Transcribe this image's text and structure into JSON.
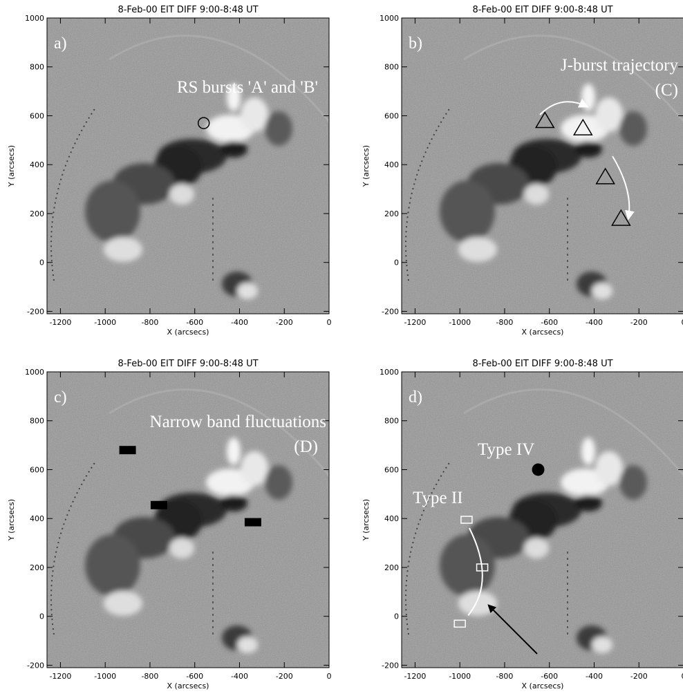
{
  "panel_title": "8-Feb-00 EIT DIFF 9:00-8:48 UT",
  "x_axis": {
    "label": "X (arcsecs)",
    "ticks": [
      "-1200",
      "-1000",
      "-800",
      "-600",
      "-400",
      "-200",
      "0"
    ],
    "range": [
      -1260,
      0
    ]
  },
  "y_axis": {
    "label": "Y (arcsecs)",
    "ticks": [
      "-200",
      "0",
      "200",
      "400",
      "600",
      "800",
      "1000"
    ],
    "range": [
      -210,
      1000
    ]
  },
  "panels": [
    {
      "label": "a)",
      "annotations": [
        "RS bursts 'A' and 'B'"
      ],
      "marker": "circle",
      "points": [
        [
          -560,
          570
        ]
      ]
    },
    {
      "label": "b)",
      "annotations": [
        "J-burst trajectory",
        "(C)"
      ],
      "marker": "triangle",
      "points": [
        [
          -620,
          580
        ],
        [
          -450,
          550
        ],
        [
          -350,
          350
        ],
        [
          -280,
          180
        ]
      ]
    },
    {
      "label": "c)",
      "annotations": [
        "Narrow band fluctuations",
        "(D)"
      ],
      "marker": "bar",
      "points": [
        [
          -900,
          680
        ],
        [
          -760,
          455
        ],
        [
          -340,
          385
        ]
      ]
    },
    {
      "label": "d)",
      "annotations": [
        "Type IV",
        "Type II"
      ],
      "type_iv_point": [
        -650,
        600
      ],
      "type_ii_points": [
        [
          -970,
          395
        ],
        [
          -900,
          200
        ],
        [
          -1000,
          -30
        ]
      ]
    }
  ]
}
